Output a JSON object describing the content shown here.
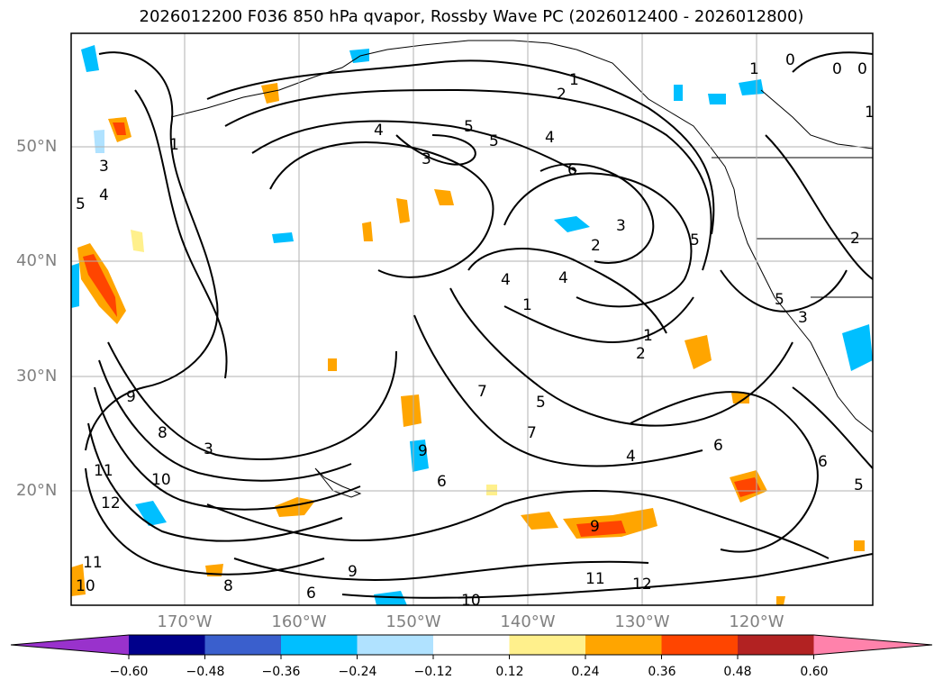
{
  "title": "2026012200 F036 850 hPa qvapor, Rossby Wave PC (2026012400 - 2026012800)",
  "lat_labels": [
    "50°N",
    "40°N",
    "30°N",
    "20°N"
  ],
  "lon_labels": [
    "170°W",
    "160°W",
    "150°W",
    "140°W",
    "130°W",
    "120°W"
  ],
  "colorbar": {
    "ticks": [
      "−0.60",
      "−0.48",
      "−0.36",
      "−0.24",
      "−0.12",
      "0.12",
      "0.24",
      "0.36",
      "0.48",
      "0.60"
    ],
    "colors": [
      "#9932cc",
      "#00008b",
      "#3a5fcd",
      "#00bfff",
      "#b0e2ff",
      "#ffffff",
      "#fff08c",
      "#ffa500",
      "#ff4500",
      "#b22222",
      "#ff82ab"
    ]
  },
  "contour_labels": [
    "1",
    "0",
    "0",
    "0",
    "1",
    "2",
    "4",
    "5",
    "5",
    "4",
    "3",
    "6",
    "3",
    "2",
    "5",
    "4",
    "4",
    "1",
    "1",
    "2",
    "5",
    "7",
    "7",
    "4",
    "6",
    "5",
    "6",
    "9",
    "6",
    "3",
    "8",
    "9",
    "10",
    "11",
    "12",
    "11",
    "10",
    "8",
    "9",
    "9",
    "11",
    "12",
    "10",
    "6",
    "1",
    "5",
    "4",
    "3",
    "2",
    "1",
    "3",
    "5"
  ]
}
